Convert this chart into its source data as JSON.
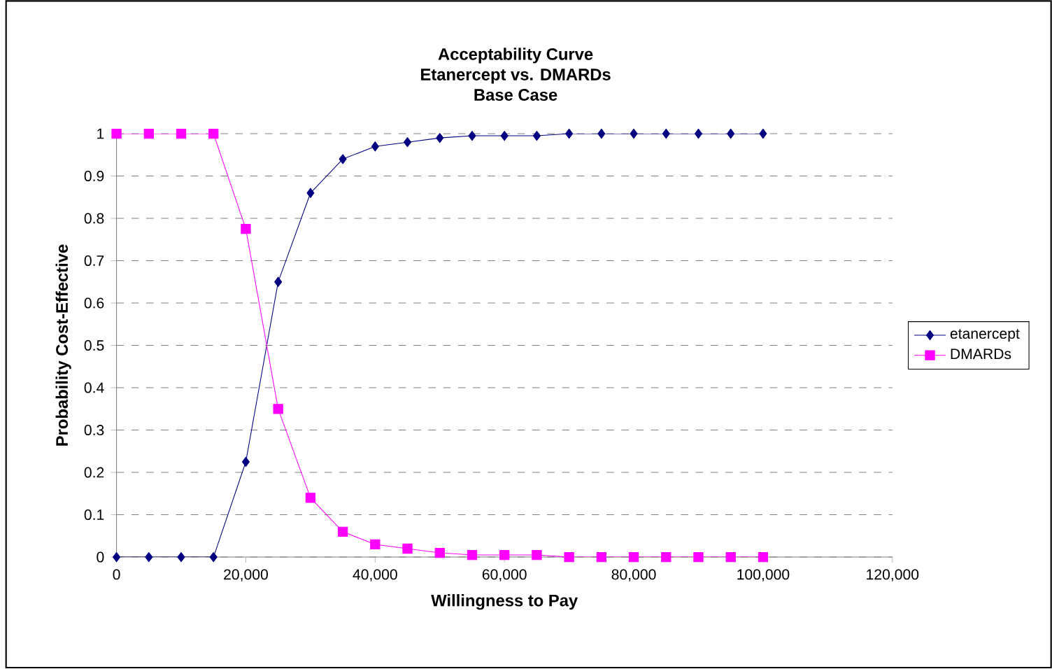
{
  "chart_data": {
    "type": "line",
    "title": "Acceptability Curve\nEtanercept vs. DMARDs\nBase Case",
    "xlabel": "Willingness to Pay",
    "ylabel": "Probability Cost-Effective",
    "x": [
      0,
      5000,
      10000,
      15000,
      20000,
      25000,
      30000,
      35000,
      40000,
      45000,
      50000,
      55000,
      60000,
      65000,
      70000,
      75000,
      80000,
      85000,
      90000,
      95000,
      100000
    ],
    "series": [
      {
        "name": "etanercept",
        "color": "#000080",
        "marker": "diamond",
        "values": [
          0,
          0,
          0,
          0,
          0.225,
          0.65,
          0.86,
          0.94,
          0.97,
          0.98,
          0.99,
          0.995,
          0.995,
          0.995,
          1,
          1,
          1,
          1,
          1,
          1,
          1
        ]
      },
      {
        "name": "DMARDs",
        "color": "#ff00ff",
        "marker": "square",
        "values": [
          1,
          1,
          1,
          1,
          0.775,
          0.35,
          0.14,
          0.06,
          0.03,
          0.02,
          0.01,
          0.005,
          0.005,
          0.005,
          0,
          0,
          0,
          0,
          0,
          0,
          0
        ]
      }
    ],
    "xlim": [
      0,
      120000
    ],
    "xticks": [
      {
        "value": 0,
        "label": "0"
      },
      {
        "value": 20000,
        "label": "20,000"
      },
      {
        "value": 40000,
        "label": "40,000"
      },
      {
        "value": 60000,
        "label": "60,000"
      },
      {
        "value": 80000,
        "label": "80,000"
      },
      {
        "value": 100000,
        "label": "100,000"
      },
      {
        "value": 120000,
        "label": "120,000"
      }
    ],
    "ylim": [
      0,
      1
    ],
    "yticks": [
      0,
      0.1,
      0.2,
      0.3,
      0.4,
      0.5,
      0.6,
      0.7,
      0.8,
      0.9,
      1
    ],
    "grid": "y",
    "legend": "right",
    "line_style": "solid"
  }
}
